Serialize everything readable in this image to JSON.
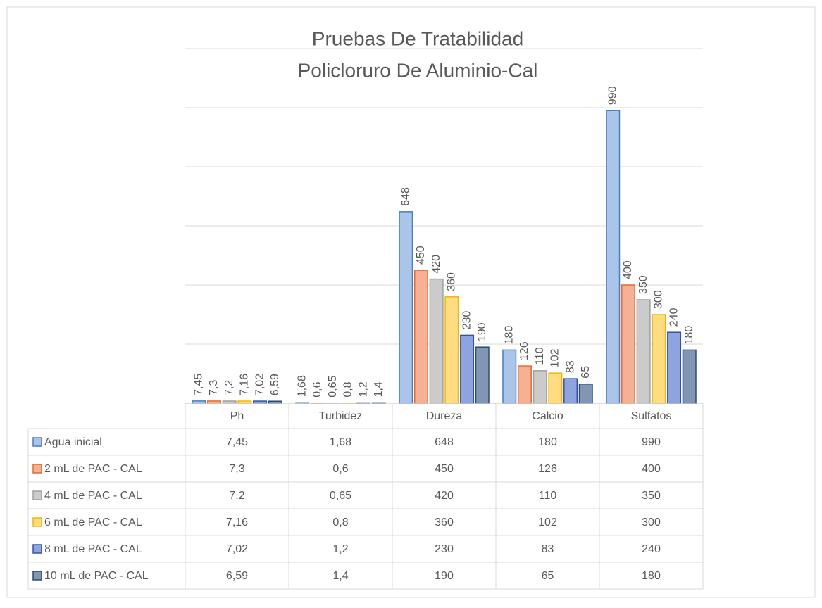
{
  "chart_data": {
    "type": "bar",
    "title": "Pruebas De Tratabilidad",
    "subtitle": "Policloruro De Aluminio-Cal",
    "categories": [
      "Ph",
      "Turbidez",
      "Dureza",
      "Calcio",
      "Sulfatos"
    ],
    "series": [
      {
        "name": "Agua inicial",
        "color": "#a9c6ea",
        "edgecolor": "#4a7cc4",
        "values": [
          7.45,
          1.68,
          648,
          180,
          990
        ],
        "value_labels": [
          "7,45",
          "1,68",
          "648",
          "180",
          "990"
        ]
      },
      {
        "name": "2 mL de PAC - CAL",
        "color": "#f5b096",
        "edgecolor": "#e36c2a",
        "values": [
          7.3,
          0.6,
          450,
          126,
          400
        ],
        "value_labels": [
          "7,3",
          "0,6",
          "450",
          "126",
          "400"
        ]
      },
      {
        "name": "4 mL de PAC - CAL",
        "color": "#cbcbcb",
        "edgecolor": "#a0a0a0",
        "values": [
          7.2,
          0.65,
          420,
          110,
          350
        ],
        "value_labels": [
          "7,2",
          "0,65",
          "420",
          "110",
          "350"
        ]
      },
      {
        "name": "6 mL de PAC - CAL",
        "color": "#ffdc82",
        "edgecolor": "#f2b705",
        "values": [
          7.16,
          0.8,
          360,
          102,
          300
        ],
        "value_labels": [
          "7,16",
          "0,8",
          "360",
          "102",
          "300"
        ]
      },
      {
        "name": "8 mL de PAC - CAL",
        "color": "#8da4de",
        "edgecolor": "#3552a8",
        "values": [
          7.02,
          1.2,
          230,
          83,
          240
        ],
        "value_labels": [
          "7,02",
          "1,2",
          "230",
          "83",
          "240"
        ]
      },
      {
        "name": "10 mL de PAC - CAL",
        "color": "#8196b4",
        "edgecolor": "#2f4a6e",
        "values": [
          6.59,
          1.4,
          190,
          65,
          180
        ],
        "value_labels": [
          "6,59",
          "1,4",
          "190",
          "65",
          "180"
        ]
      }
    ],
    "ylim": [
      0,
      1200
    ],
    "yticks": [
      0,
      200,
      400,
      600,
      800,
      1000,
      1200
    ],
    "grid": true
  }
}
